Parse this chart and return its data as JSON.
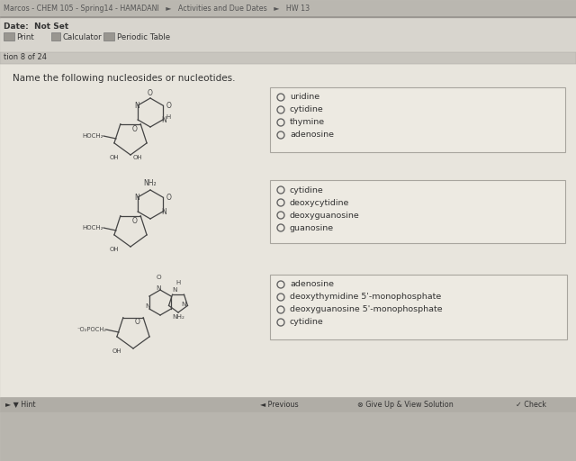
{
  "bg_color": "#c8c5be",
  "nav_bar_bg": "#bab7b0",
  "content_bg": "#e8e5dd",
  "toolbar_bg": "#d8d5ce",
  "qnum_bar_bg": "#c8c5be",
  "nav_text": "Marcos - CHEM 105 - Spring14 - HAMADANI   ►   Activities and Due Dates   ►   HW 13",
  "date_text": "Date:  Not Set",
  "toolbar_items": [
    "Print",
    "Calculator",
    "Periodic Table"
  ],
  "question_num": "tion 8 of 24",
  "question_text": "Name the following nucleosides or nucleotides.",
  "answer_sets": [
    [
      "uridine",
      "cytidine",
      "thymine",
      "adenosine"
    ],
    [
      "cytidine",
      "deoxycytidine",
      "deoxyguanosine",
      "guanosine"
    ],
    [
      "adenosine",
      "deoxythymidine 5'-monophosphate",
      "deoxyguanosine 5'-monophosphate",
      "cytidine"
    ]
  ],
  "bottom_bar_bg": "#b0ada6",
  "bottom_buttons": [
    "Previous",
    "Give Up & View Solution",
    "Check"
  ],
  "hint_text": "► ▼ Hint",
  "box_border": "#a8a59e",
  "box_bg": "#edeae2",
  "radio_color": "#666666",
  "text_color": "#333333",
  "nav_color": "#555555",
  "mol_color": "#444444",
  "footer_bg": "#b8b5ae",
  "sep_color": "#999590"
}
